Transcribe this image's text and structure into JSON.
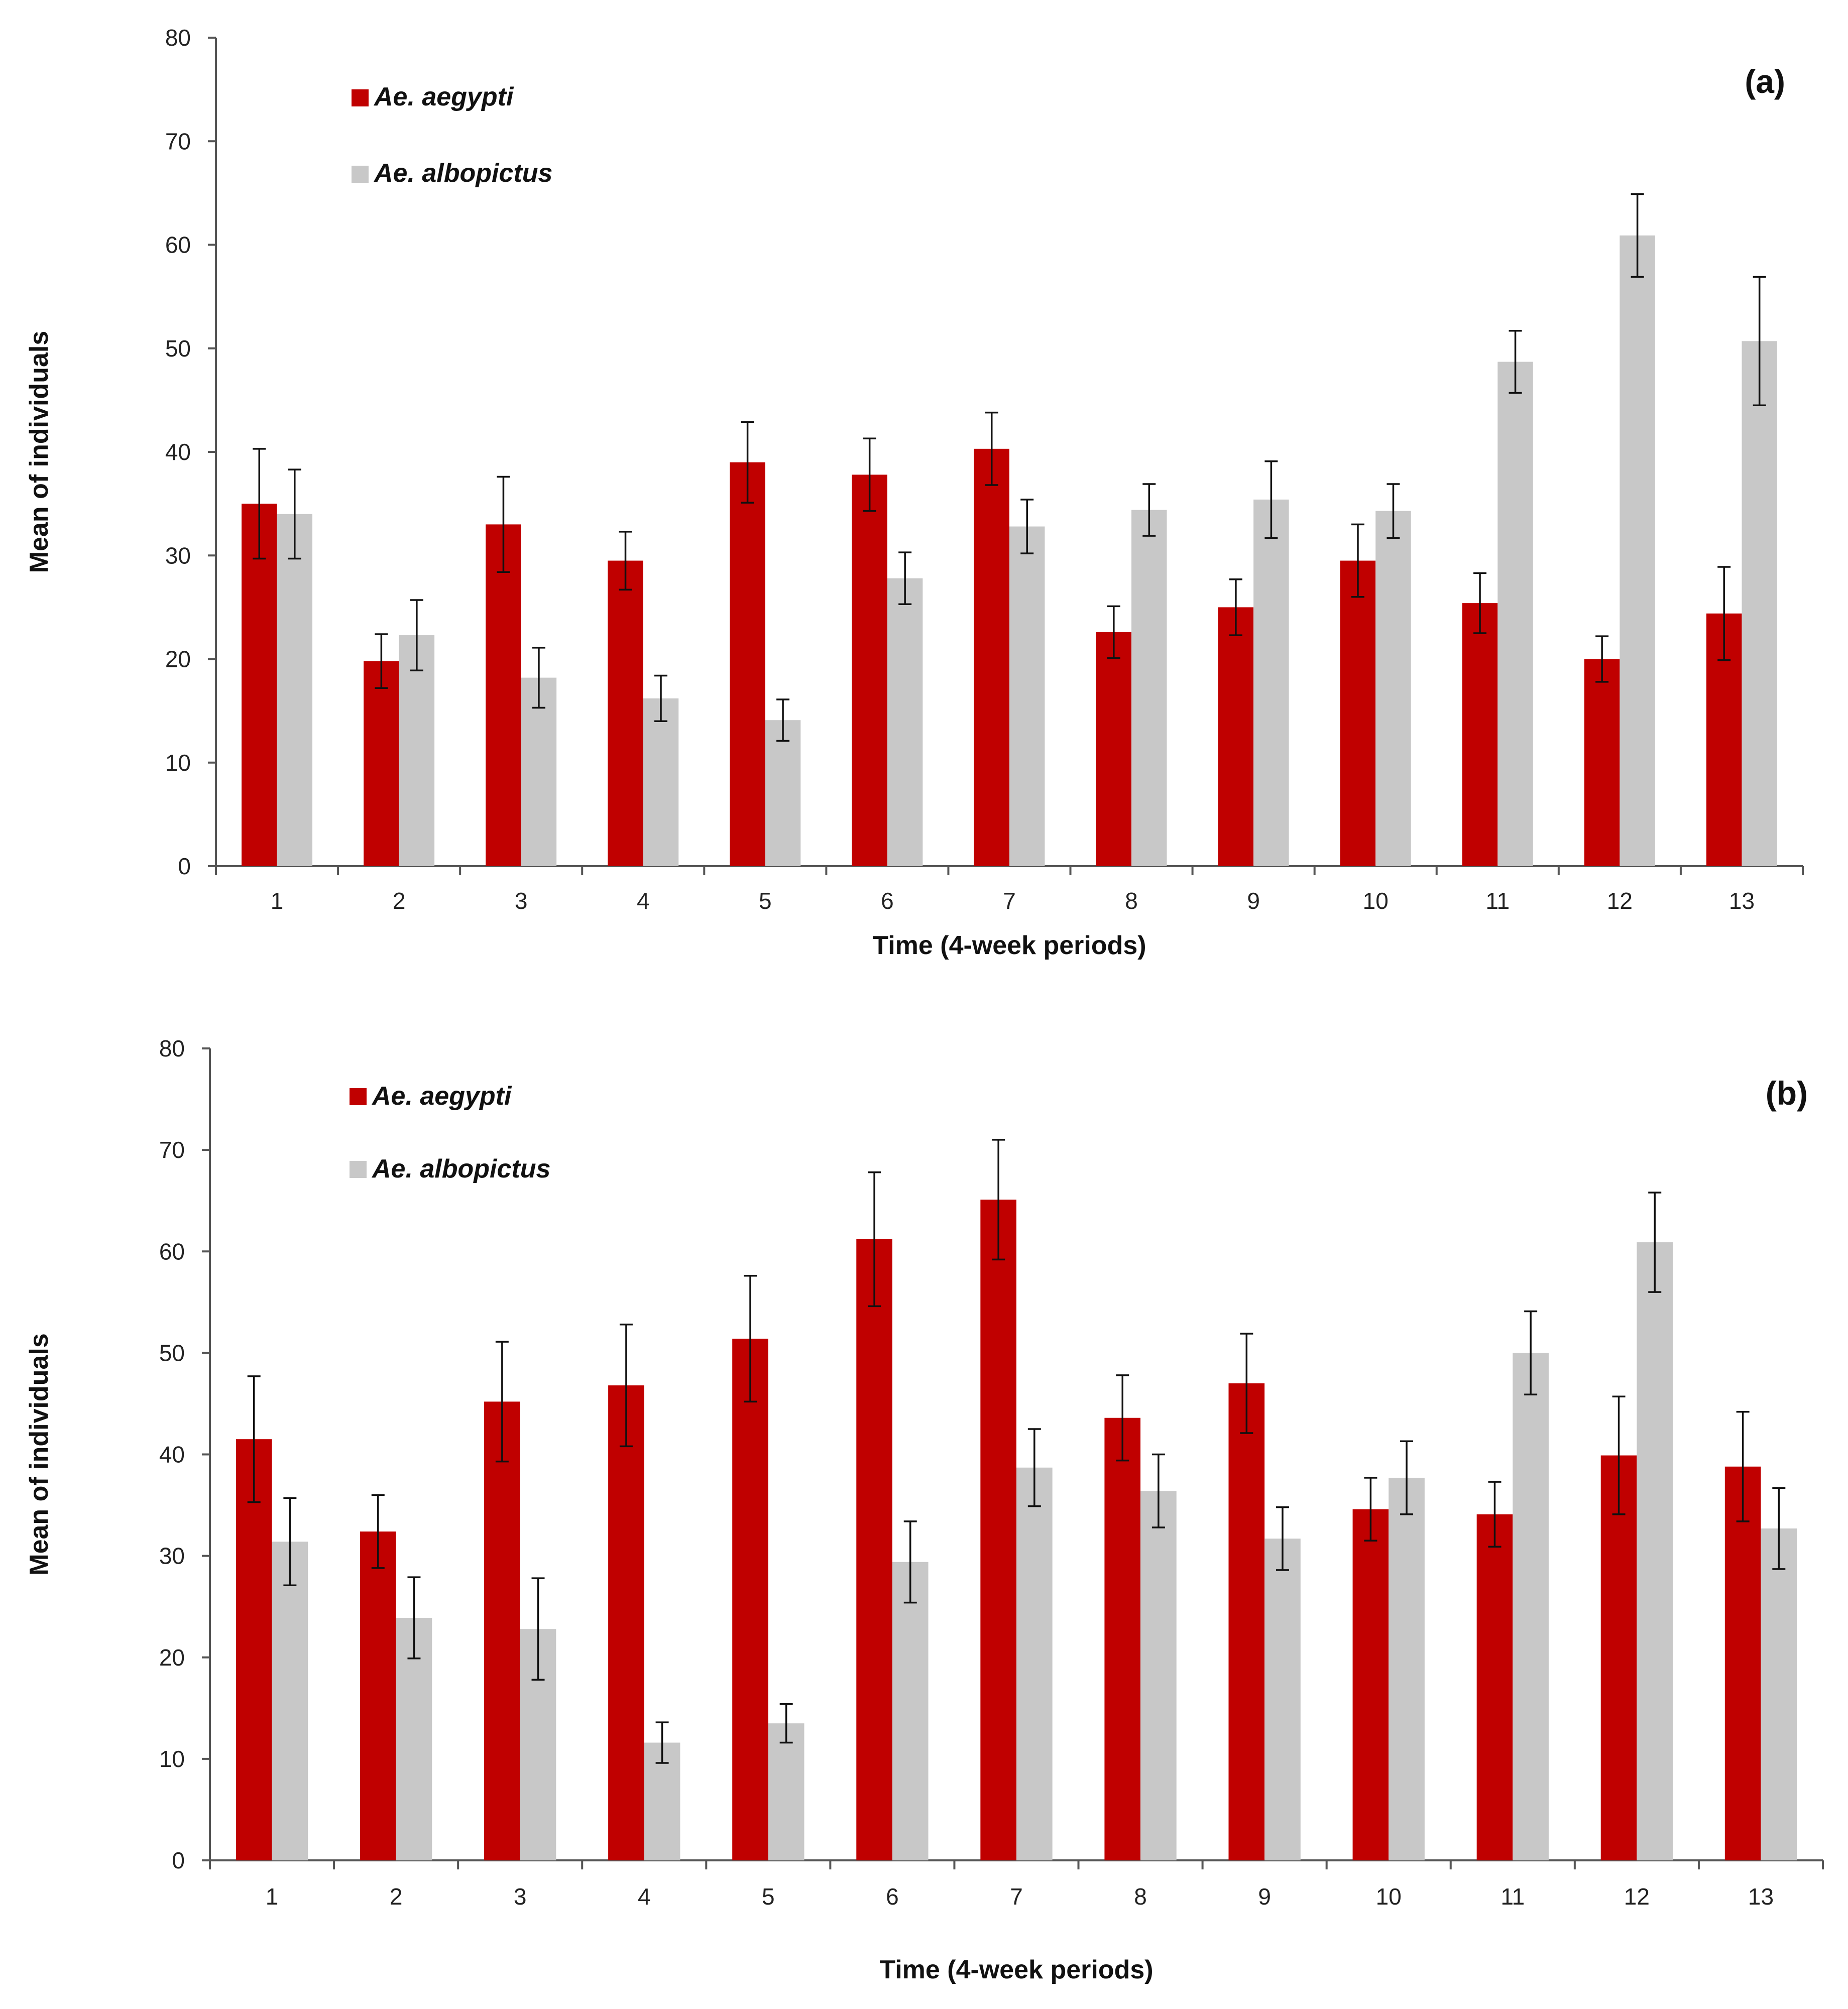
{
  "chart_data": [
    {
      "type": "bar",
      "panel_label": "(a)",
      "xlabel": "Time (4-week periods)",
      "ylabel": "Mean of individuals",
      "ylim": [
        0,
        80
      ],
      "yticks": [
        0,
        10,
        20,
        30,
        40,
        50,
        60,
        70,
        80
      ],
      "categories": [
        "1",
        "2",
        "3",
        "4",
        "5",
        "6",
        "7",
        "8",
        "9",
        "10",
        "11",
        "12",
        "13"
      ],
      "legend_position": "top-left",
      "series": [
        {
          "name": "Ae. aegypti",
          "color": "#C00000",
          "values": [
            35,
            19.8,
            33,
            29.5,
            39,
            37.8,
            40.3,
            22.6,
            25,
            29.5,
            25.4,
            20,
            24.4
          ],
          "errors": [
            5.3,
            2.6,
            4.6,
            2.8,
            3.9,
            3.5,
            3.5,
            2.5,
            2.7,
            3.5,
            2.9,
            2.2,
            4.5
          ]
        },
        {
          "name": "Ae. albopictus",
          "color": "#C8C8C8",
          "values": [
            34,
            22.3,
            18.2,
            16.2,
            14.1,
            27.8,
            32.8,
            34.4,
            35.4,
            34.3,
            48.7,
            60.9,
            50.7
          ],
          "errors": [
            4.3,
            3.4,
            2.9,
            2.2,
            2,
            2.5,
            2.6,
            2.5,
            3.7,
            2.6,
            3,
            4,
            6.2
          ]
        }
      ]
    },
    {
      "type": "bar",
      "panel_label": "(b)",
      "xlabel": "Time (4-week periods)",
      "ylabel": "Mean of individuals",
      "ylim": [
        0,
        80
      ],
      "yticks": [
        0,
        10,
        20,
        30,
        40,
        50,
        60,
        70,
        80
      ],
      "categories": [
        "1",
        "2",
        "3",
        "4",
        "5",
        "6",
        "7",
        "8",
        "9",
        "10",
        "11",
        "12",
        "13"
      ],
      "legend_position": "top-left",
      "series": [
        {
          "name": "Ae. aegypti",
          "color": "#C00000",
          "values": [
            41.5,
            32.4,
            45.2,
            46.8,
            51.4,
            61.2,
            65.1,
            43.6,
            47,
            34.6,
            34.1,
            39.9,
            38.8
          ],
          "errors": [
            6.2,
            3.6,
            5.9,
            6,
            6.2,
            6.6,
            5.9,
            4.2,
            4.9,
            3.1,
            3.2,
            5.8,
            5.4
          ]
        },
        {
          "name": "Ae. albopictus",
          "color": "#C8C8C8",
          "values": [
            31.4,
            23.9,
            22.8,
            11.6,
            13.5,
            29.4,
            38.7,
            36.4,
            31.7,
            37.7,
            50,
            60.9,
            32.7
          ],
          "errors": [
            4.3,
            4,
            5,
            2,
            1.9,
            4,
            3.8,
            3.6,
            3.1,
            3.6,
            4.1,
            4.9,
            4
          ]
        }
      ]
    }
  ]
}
